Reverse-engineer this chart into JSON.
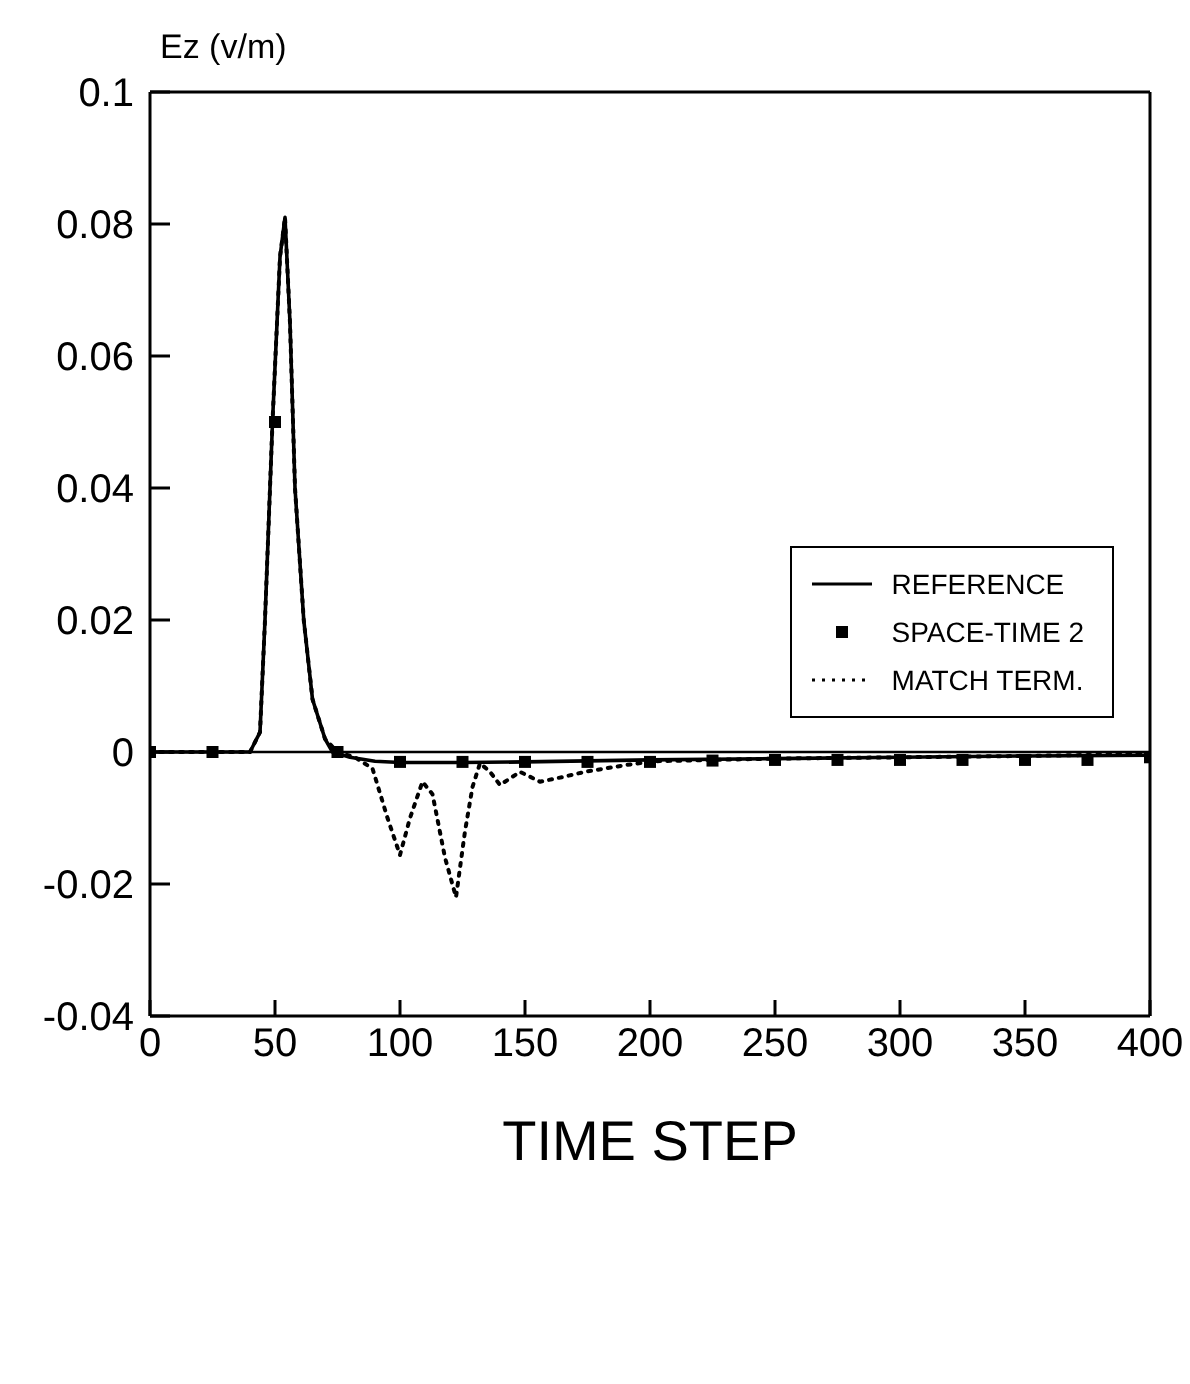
{
  "chart_data": {
    "type": "line",
    "xlabel": "TIME STEP",
    "ylabel": "Ez (v/m)",
    "xlim": [
      0,
      400
    ],
    "xticks": [
      0,
      50,
      100,
      150,
      200,
      250,
      300,
      350,
      400
    ],
    "ylim": [
      -0.04,
      0.1
    ],
    "yticks": [
      -0.04,
      -0.02,
      0,
      0.02,
      0.04,
      0.06,
      0.08,
      0.1
    ],
    "grid": false,
    "legend": "right",
    "ref_lines": [
      {
        "axis": "y",
        "value": 0,
        "color": "#000000"
      }
    ],
    "series": [
      {
        "name": "REFERENCE",
        "color": "#000000",
        "line_style": "solid",
        "marker": "none",
        "x": [
          0,
          40,
          44,
          46,
          49,
          52,
          54,
          56,
          58,
          61.5,
          65,
          70,
          73,
          80,
          90,
          100,
          125,
          150,
          200,
          250,
          300,
          350,
          400
        ],
        "values": [
          0,
          0,
          0.003,
          0.02,
          0.05,
          0.075,
          0.081,
          0.065,
          0.04,
          0.02,
          0.008,
          0.002,
          0,
          -0.0008,
          -0.0014,
          -0.0016,
          -0.0016,
          -0.0015,
          -0.0012,
          -0.001,
          -0.0008,
          -0.0006,
          -0.0005
        ]
      },
      {
        "name": "SPACE-TIME 2",
        "type": "scatter",
        "color": "#000000",
        "marker": "square",
        "x": [
          0,
          25,
          50,
          75,
          100,
          125,
          150,
          175,
          200,
          225,
          250,
          275,
          300,
          325,
          350,
          375,
          400
        ],
        "values": [
          0,
          0,
          0.05,
          0,
          -0.0015,
          -0.0015,
          -0.0015,
          -0.0015,
          -0.0015,
          -0.0013,
          -0.0012,
          -0.0012,
          -0.0012,
          -0.0012,
          -0.0012,
          -0.0012,
          -0.0008
        ]
      },
      {
        "name": "MATCH TERM.",
        "color": "#000000",
        "line_style": "dotted",
        "marker": "none",
        "x": [
          0,
          40,
          44,
          46,
          49,
          52,
          54,
          56,
          58,
          61.5,
          65,
          70,
          75,
          82,
          89,
          95,
          100,
          104,
          109,
          113,
          118,
          122.4,
          126,
          129,
          132,
          136,
          140,
          148,
          156,
          165,
          174,
          190,
          201,
          225,
          250,
          300,
          350,
          400
        ],
        "values": [
          0,
          0,
          0.003,
          0.02,
          0.05,
          0.075,
          0.081,
          0.065,
          0.04,
          0.02,
          0.008,
          0.002,
          0,
          -0.0008,
          -0.0025,
          -0.01,
          -0.0156,
          -0.01,
          -0.0045,
          -0.0064,
          -0.016,
          -0.022,
          -0.012,
          -0.0053,
          -0.0017,
          -0.003,
          -0.005,
          -0.003,
          -0.0045,
          -0.0038,
          -0.003,
          -0.002,
          -0.0014,
          -0.0012,
          -0.001,
          -0.0008,
          -0.0006,
          -0.0003
        ]
      }
    ]
  }
}
